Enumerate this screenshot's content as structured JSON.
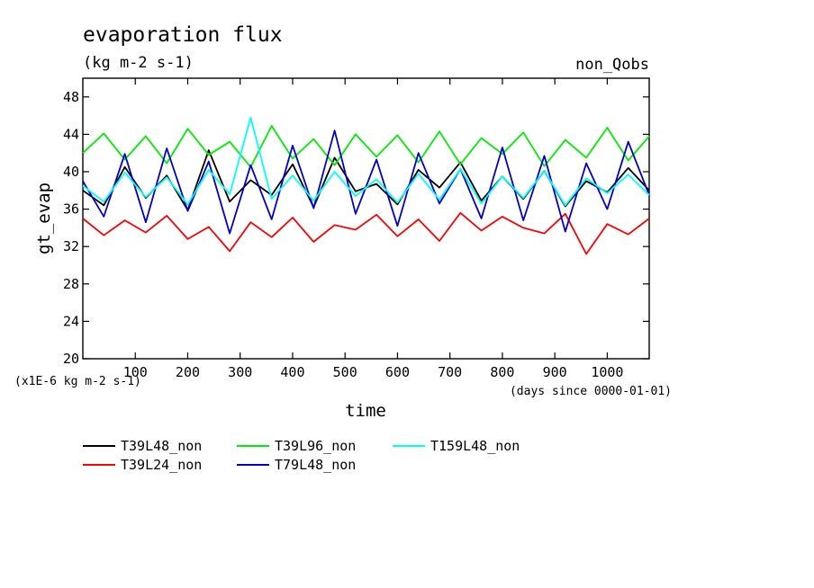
{
  "chart_data": {
    "type": "line",
    "title": "evaporation flux",
    "subtitle": "(kg m-2 s-1)",
    "annotation": "non_Qobs",
    "xlabel": "time",
    "ylabel": "gt_evap",
    "x_unit_note": "(days since 0000-01-01)",
    "y_scale_note": "(x1E-6 kg m-2 s-1)",
    "xlim": [
      0,
      1080
    ],
    "ylim": [
      20,
      50
    ],
    "x_ticks": [
      100,
      200,
      300,
      400,
      500,
      600,
      700,
      800,
      900,
      1000
    ],
    "y_ticks": [
      20,
      24,
      28,
      32,
      36,
      40,
      44,
      48
    ],
    "legend_position": "bottom",
    "series": [
      {
        "name": "T39L48_non",
        "color": "#000000",
        "x": [
          0,
          40,
          80,
          120,
          160,
          200,
          240,
          280,
          320,
          360,
          400,
          440,
          480,
          520,
          560,
          600,
          640,
          680,
          720,
          760,
          800,
          840,
          880,
          920,
          960,
          1000,
          1040,
          1080
        ],
        "y": [
          38.0,
          36.4,
          40.5,
          37.2,
          39.6,
          35.9,
          42.3,
          36.8,
          39.1,
          37.5,
          40.8,
          36.2,
          41.5,
          37.9,
          38.7,
          36.5,
          40.2,
          38.3,
          41.0,
          36.9,
          39.5,
          37.1,
          40.1,
          36.3,
          39.0,
          37.8,
          40.4,
          38.0
        ]
      },
      {
        "name": "T39L24_non",
        "color": "#ff0000",
        "x": [
          0,
          40,
          80,
          120,
          160,
          200,
          240,
          280,
          320,
          360,
          400,
          440,
          480,
          520,
          560,
          600,
          640,
          680,
          720,
          760,
          800,
          840,
          880,
          920,
          960,
          1000,
          1040,
          1080
        ],
        "y": [
          35.0,
          33.2,
          34.8,
          33.5,
          35.3,
          32.8,
          34.1,
          31.5,
          34.6,
          33.0,
          35.1,
          32.5,
          34.3,
          33.8,
          35.4,
          33.1,
          34.9,
          32.6,
          35.6,
          33.7,
          35.2,
          34.0,
          33.4,
          35.5,
          31.2,
          34.4,
          33.3,
          35.0
        ]
      },
      {
        "name": "T39L96_non",
        "color": "#00ee00",
        "x": [
          0,
          40,
          80,
          120,
          160,
          200,
          240,
          280,
          320,
          360,
          400,
          440,
          480,
          520,
          560,
          600,
          640,
          680,
          720,
          760,
          800,
          840,
          880,
          920,
          960,
          1000,
          1040,
          1080
        ],
        "y": [
          42.0,
          44.1,
          41.3,
          43.8,
          40.9,
          44.6,
          41.8,
          43.2,
          40.5,
          44.9,
          41.4,
          43.5,
          40.7,
          44.0,
          41.6,
          43.9,
          41.0,
          44.3,
          40.8,
          43.6,
          41.9,
          44.2,
          40.6,
          43.4,
          41.5,
          44.7,
          41.2,
          43.8
        ]
      },
      {
        "name": "T79L48_non",
        "color": "#0000cc",
        "x": [
          0,
          40,
          80,
          120,
          160,
          200,
          240,
          280,
          320,
          360,
          400,
          440,
          480,
          520,
          560,
          600,
          640,
          680,
          720,
          760,
          800,
          840,
          880,
          920,
          960,
          1000,
          1040,
          1080
        ],
        "y": [
          39.0,
          35.2,
          41.9,
          34.6,
          42.5,
          35.8,
          41.1,
          33.4,
          40.7,
          34.9,
          42.8,
          36.1,
          44.4,
          35.5,
          41.3,
          34.2,
          42.0,
          36.6,
          40.3,
          35.0,
          42.6,
          34.8,
          41.7,
          33.6,
          40.9,
          36.0,
          43.2,
          37.5
        ]
      },
      {
        "name": "T159L48_non",
        "color": "#00ffff",
        "x": [
          0,
          40,
          80,
          120,
          160,
          200,
          240,
          280,
          320,
          360,
          400,
          440,
          480,
          520,
          560,
          600,
          640,
          680,
          720,
          760,
          800,
          840,
          880,
          920,
          960,
          1000,
          1040,
          1080
        ],
        "y": [
          38.5,
          36.8,
          39.9,
          37.3,
          39.4,
          36.5,
          40.2,
          37.6,
          45.8,
          37.1,
          39.6,
          36.9,
          40.0,
          37.4,
          39.2,
          36.7,
          39.8,
          37.0,
          40.3,
          36.6,
          39.5,
          37.2,
          40.1,
          36.4,
          39.3,
          37.7,
          39.7,
          37.5
        ]
      }
    ]
  }
}
